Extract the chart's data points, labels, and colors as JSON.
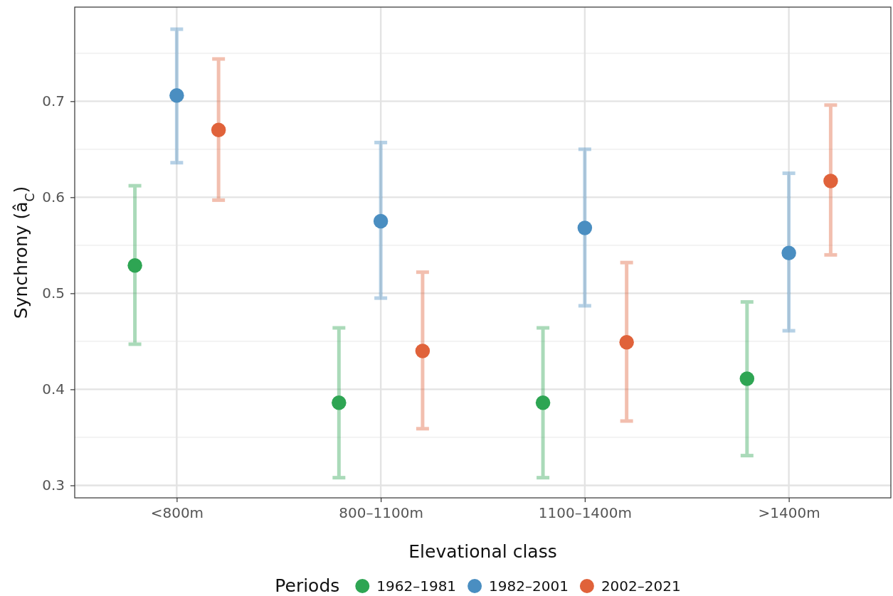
{
  "chart_data": {
    "type": "scatter",
    "xlabel": "Elevational class",
    "ylabel": "Synchrony (â$_{C}$)",
    "legend_title": "Periods",
    "legend": "bottom",
    "grid": true,
    "marker": "circle",
    "categories": [
      "<800m",
      "800–1100m",
      "1100–1400m",
      ">1400m"
    ],
    "ylim": [
      0.287,
      0.798
    ],
    "yticks": [
      0.3,
      0.4,
      0.5,
      0.6,
      0.7
    ],
    "series": [
      {
        "name": "1962–1981",
        "color": "#2ea553",
        "values": [
          0.529,
          0.386,
          0.386,
          0.411
        ],
        "errors": [
          [
            0.447,
            0.612
          ],
          [
            0.308,
            0.464
          ],
          [
            0.308,
            0.464
          ],
          [
            0.331,
            0.491
          ]
        ]
      },
      {
        "name": "1982–2001",
        "color": "#4a8ec1",
        "values": [
          0.706,
          0.575,
          0.568,
          0.542
        ],
        "errors": [
          [
            0.636,
            0.775
          ],
          [
            0.495,
            0.657
          ],
          [
            0.487,
            0.65
          ],
          [
            0.461,
            0.625
          ]
        ]
      },
      {
        "name": "2002–2021",
        "color": "#e0623a",
        "values": [
          0.67,
          0.44,
          0.449,
          0.617
        ],
        "errors": [
          [
            0.597,
            0.744
          ],
          [
            0.359,
            0.522
          ],
          [
            0.367,
            0.532
          ],
          [
            0.54,
            0.696
          ]
        ]
      }
    ]
  }
}
